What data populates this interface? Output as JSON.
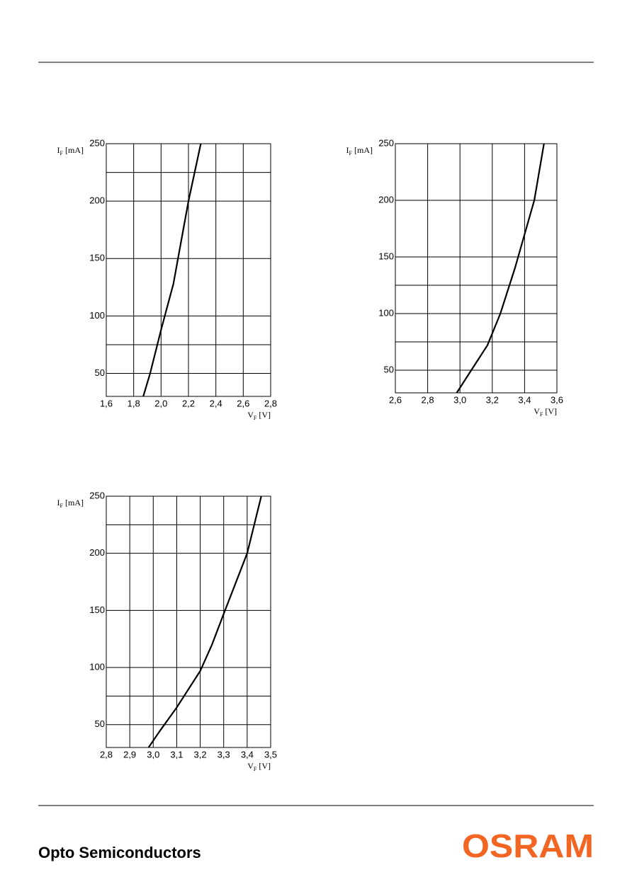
{
  "chart_data": [
    {
      "type": "line",
      "ylabel": {
        "symbol": "I",
        "sub": "F",
        "unit": "[mA]"
      },
      "xlabel": {
        "symbol": "V",
        "sub": "F",
        "unit": "[V]"
      },
      "xlim": [
        1.6,
        2.8
      ],
      "xticks": [
        {
          "value": 1.6,
          "label": "1,6"
        },
        {
          "value": 1.8,
          "label": "1,8"
        },
        {
          "value": 2.0,
          "label": "2,0"
        },
        {
          "value": 2.2,
          "label": "2,2"
        },
        {
          "value": 2.4,
          "label": "2,4"
        },
        {
          "value": 2.6,
          "label": "2,6"
        },
        {
          "value": 2.8,
          "label": "2,8"
        }
      ],
      "ylim": [
        30,
        250
      ],
      "yticks": [
        50,
        100,
        150,
        200,
        250
      ],
      "ygrid": [
        75,
        225
      ],
      "grid": true,
      "series": [
        {
          "color": "#000000",
          "x": [
            1.87,
            1.92,
            2.0,
            2.09,
            2.2,
            2.29
          ],
          "values": [
            30,
            50,
            88,
            128,
            200,
            250
          ]
        }
      ]
    },
    {
      "type": "line",
      "ylabel": {
        "symbol": "I",
        "sub": "F",
        "unit": "[mA]"
      },
      "xlabel": {
        "symbol": "V",
        "sub": "F",
        "unit": "[V]"
      },
      "xlim": [
        2.6,
        3.6
      ],
      "xticks": [
        {
          "value": 2.6,
          "label": "2,6"
        },
        {
          "value": 2.8,
          "label": "2,8"
        },
        {
          "value": 3.0,
          "label": "3,0"
        },
        {
          "value": 3.2,
          "label": "3,2"
        },
        {
          "value": 3.4,
          "label": "3,4"
        },
        {
          "value": 3.6,
          "label": "3,6"
        }
      ],
      "ylim": [
        30,
        250
      ],
      "yticks": [
        50,
        100,
        150,
        200,
        250
      ],
      "ygrid": [
        75,
        125
      ],
      "grid": true,
      "series": [
        {
          "color": "#000000",
          "x": [
            2.98,
            3.07,
            3.17,
            3.25,
            3.34,
            3.4,
            3.46,
            3.52
          ],
          "values": [
            30,
            50,
            72,
            100,
            140,
            170,
            200,
            250
          ]
        }
      ]
    },
    {
      "type": "line",
      "ylabel": {
        "symbol": "I",
        "sub": "F",
        "unit": "[mA]"
      },
      "xlabel": {
        "symbol": "V",
        "sub": "F",
        "unit": "[V]"
      },
      "xlim": [
        2.8,
        3.5
      ],
      "xticks": [
        {
          "value": 2.8,
          "label": "2,8"
        },
        {
          "value": 2.9,
          "label": "2,9"
        },
        {
          "value": 3.0,
          "label": "3,0"
        },
        {
          "value": 3.1,
          "label": "3,1"
        },
        {
          "value": 3.2,
          "label": "3,2"
        },
        {
          "value": 3.3,
          "label": "3,3"
        },
        {
          "value": 3.4,
          "label": "3,4"
        },
        {
          "value": 3.5,
          "label": "3,5"
        }
      ],
      "ylim": [
        30,
        250
      ],
      "yticks": [
        50,
        100,
        150,
        200,
        250
      ],
      "ygrid": [
        75,
        225
      ],
      "grid": true,
      "series": [
        {
          "color": "#000000",
          "x": [
            2.98,
            3.03,
            3.1,
            3.2,
            3.25,
            3.3,
            3.4,
            3.46
          ],
          "values": [
            30,
            45,
            65,
            97,
            120,
            147,
            200,
            250
          ]
        }
      ]
    }
  ],
  "footer": {
    "division": "Opto Semiconductors",
    "brand": "OSRAM"
  }
}
